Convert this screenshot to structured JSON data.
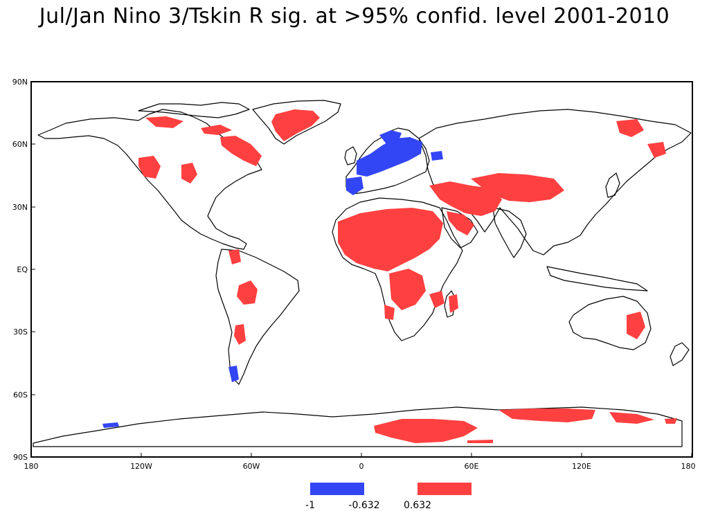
{
  "title": "Jul/Jan Nino 3/Tskin R sig. at >95% confid. level 2001-2010",
  "map": {
    "lat_labels": [
      "90N",
      "60N",
      "30N",
      "EQ",
      "30S",
      "60S",
      "90S"
    ],
    "lon_labels": [
      "180",
      "120W",
      "60W",
      "0",
      "60E",
      "120E",
      "180"
    ],
    "colors": {
      "negative": "#3346f5",
      "positive": "#ff4040",
      "land_outline": "#000000"
    }
  },
  "legend": {
    "labels": [
      "-1",
      "-0.632",
      "0.632"
    ],
    "colors": [
      "#3346f5",
      "#ff4040"
    ]
  }
}
